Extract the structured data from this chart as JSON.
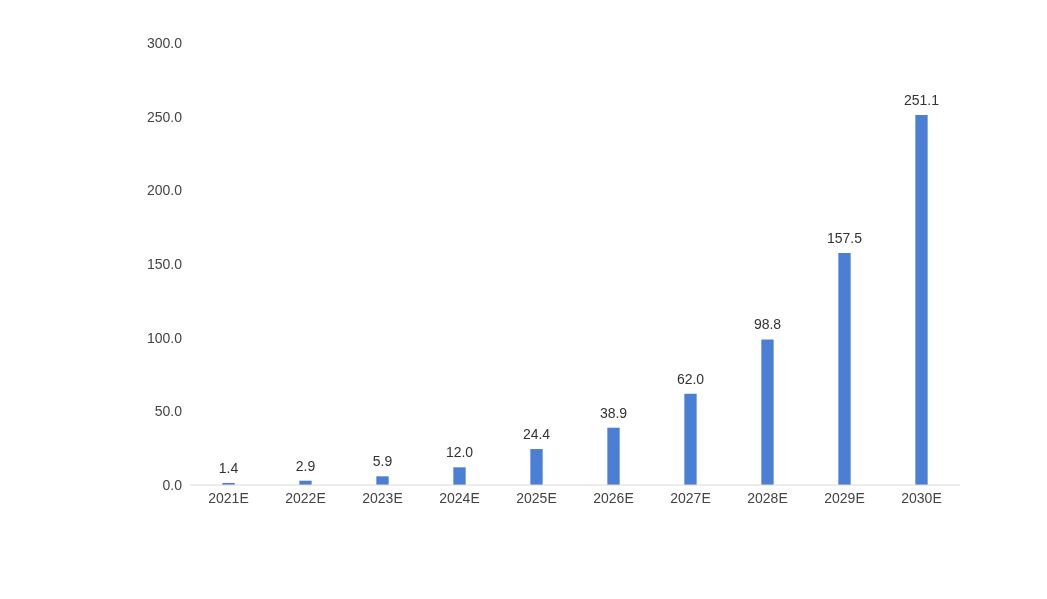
{
  "chart_data": {
    "type": "bar",
    "categories": [
      "2021E",
      "2022E",
      "2023E",
      "2024E",
      "2025E",
      "2026E",
      "2027E",
      "2028E",
      "2029E",
      "2030E"
    ],
    "values": [
      1.4,
      2.9,
      5.9,
      12.0,
      24.4,
      38.9,
      62.0,
      98.8,
      157.5,
      251.1
    ],
    "color": "#4a7fd4",
    "ylim": [
      0,
      300
    ],
    "yticks": [
      {
        "value": 0,
        "label": "0.0"
      },
      {
        "value": 50,
        "label": "50.0"
      },
      {
        "value": 100,
        "label": "100.0"
      },
      {
        "value": 150,
        "label": "150.0"
      },
      {
        "value": 200,
        "label": "200.0"
      },
      {
        "value": 250,
        "label": "250.0"
      },
      {
        "value": 300,
        "label": "300.0"
      }
    ],
    "value_labels": [
      "1.4",
      "2.9",
      "5.9",
      "12.0",
      "24.4",
      "38.9",
      "62.0",
      "98.8",
      "157.5",
      "251.1"
    ],
    "grid": false,
    "legend": false
  }
}
